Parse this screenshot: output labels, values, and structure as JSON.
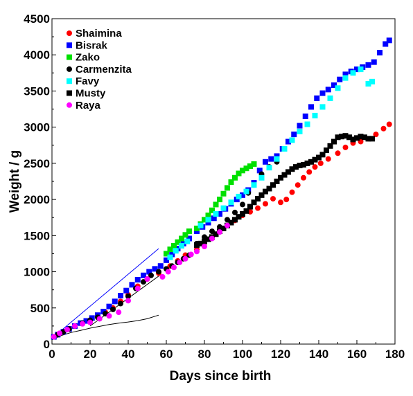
{
  "chart_data": {
    "type": "scatter",
    "title": "",
    "xlabel": "Days since birth",
    "ylabel": "Weight / g",
    "xlim": [
      0,
      180
    ],
    "ylim": [
      0,
      4500
    ],
    "xticks": [
      "0",
      "20",
      "40",
      "60",
      "80",
      "100",
      "120",
      "140",
      "160",
      "180"
    ],
    "yticks": [
      "0",
      "500",
      "1000",
      "1500",
      "2000",
      "2500",
      "3000",
      "3500",
      "4000",
      "4500"
    ],
    "grid": false,
    "legend_position": "top-left",
    "series": [
      {
        "name": "Shaimina",
        "color": "#ff0000",
        "marker": "circle",
        "x": [
          1,
          3,
          6,
          9,
          12,
          16,
          20,
          24,
          28,
          32,
          36,
          40,
          45,
          50,
          56,
          62,
          66,
          70,
          76,
          80,
          84,
          88,
          92,
          96,
          100,
          104,
          108,
          112,
          116,
          120,
          123,
          126,
          129,
          132,
          135,
          138,
          141,
          145,
          150,
          154,
          158,
          162,
          166,
          170,
          174,
          177
        ],
        "y": [
          100,
          130,
          170,
          210,
          250,
          290,
          320,
          380,
          440,
          500,
          590,
          680,
          800,
          900,
          980,
          1080,
          1150,
          1230,
          1310,
          1400,
          1480,
          1560,
          1640,
          1710,
          1780,
          1830,
          1880,
          1940,
          2010,
          1960,
          2000,
          2100,
          2200,
          2300,
          2380,
          2450,
          2500,
          2560,
          2640,
          2720,
          2780,
          2800,
          2840,
          2900,
          2980,
          3040
        ]
      },
      {
        "name": "Bisrak",
        "color": "#0000ff",
        "marker": "square",
        "x": [
          1,
          3,
          6,
          9,
          12,
          15,
          18,
          21,
          24,
          27,
          30,
          33,
          36,
          39,
          42,
          45,
          48,
          51,
          54,
          57,
          60,
          63,
          66,
          69,
          72,
          76,
          79,
          82,
          85,
          88,
          91,
          94,
          97,
          100,
          103,
          106,
          109,
          112,
          115,
          118,
          121,
          124,
          127,
          130,
          133,
          136,
          139,
          142,
          145,
          148,
          151,
          154,
          157,
          160,
          163,
          166,
          169,
          172,
          175,
          177
        ],
        "y": [
          100,
          130,
          170,
          210,
          250,
          290,
          320,
          360,
          400,
          450,
          520,
          590,
          670,
          740,
          820,
          890,
          950,
          1000,
          1040,
          1080,
          1160,
          1240,
          1320,
          1390,
          1460,
          1560,
          1620,
          1680,
          1740,
          1800,
          1870,
          1940,
          2000,
          2060,
          2130,
          2230,
          2400,
          2520,
          2560,
          2600,
          2700,
          2800,
          2900,
          3020,
          3150,
          3280,
          3400,
          3470,
          3520,
          3580,
          3660,
          3730,
          3770,
          3800,
          3830,
          3860,
          3900,
          4030,
          4150,
          4200
        ]
      },
      {
        "name": "Zako",
        "color": "#00e000",
        "marker": "square",
        "x": [
          60,
          62,
          64,
          66,
          68,
          70,
          72,
          76,
          78,
          80,
          82,
          84,
          86,
          88,
          90,
          92,
          94,
          96,
          98,
          100,
          102,
          104,
          106
        ],
        "y": [
          1250,
          1310,
          1360,
          1410,
          1460,
          1510,
          1560,
          1600,
          1660,
          1720,
          1780,
          1850,
          1930,
          2000,
          2080,
          2160,
          2240,
          2300,
          2360,
          2400,
          2430,
          2460,
          2490
        ]
      },
      {
        "name": "Carmenzita",
        "color": "#000000",
        "marker": "circle",
        "x": [
          1,
          3,
          6,
          9,
          12,
          16,
          20,
          24,
          28,
          32,
          36,
          40,
          44,
          48,
          52,
          56,
          60,
          63,
          66,
          69,
          72,
          76,
          80,
          84,
          88,
          92,
          96,
          100,
          103,
          106,
          110,
          114,
          118
        ],
        "y": [
          100,
          130,
          170,
          210,
          250,
          290,
          330,
          370,
          420,
          480,
          560,
          660,
          770,
          860,
          950,
          1000,
          1040,
          1080,
          1130,
          1180,
          1230,
          1390,
          1480,
          1560,
          1620,
          1720,
          1820,
          1930,
          2090,
          2200,
          2350,
          2450,
          2520
        ]
      },
      {
        "name": "Favy",
        "color": "#00ffff",
        "marker": "square",
        "x": [
          62,
          65,
          68,
          71,
          78,
          82,
          86,
          90,
          94,
          98,
          102,
          106,
          110,
          114,
          118,
          122,
          126,
          130,
          134,
          138,
          142,
          146,
          150,
          154,
          158,
          162,
          166,
          168
        ],
        "y": [
          1200,
          1290,
          1360,
          1420,
          1640,
          1720,
          1800,
          1880,
          1960,
          2040,
          2110,
          2200,
          2300,
          2440,
          2560,
          2700,
          2820,
          2940,
          3040,
          3160,
          3280,
          3400,
          3540,
          3680,
          3750,
          3800,
          3600,
          3630
        ]
      },
      {
        "name": "Musty",
        "color": "#000000",
        "marker": "square",
        "x": [
          76,
          78,
          80,
          82,
          84,
          86,
          88,
          90,
          92,
          94,
          96,
          98,
          100,
          102,
          104,
          106,
          108,
          110,
          112,
          114,
          116,
          118,
          120,
          122,
          124,
          126,
          128,
          130,
          132,
          134,
          136,
          138,
          140,
          142,
          144,
          146,
          148,
          150,
          152,
          154,
          156,
          158,
          160,
          162,
          164,
          166,
          168
        ],
        "y": [
          1370,
          1390,
          1420,
          1450,
          1480,
          1520,
          1560,
          1600,
          1640,
          1680,
          1720,
          1760,
          1800,
          1840,
          1900,
          1960,
          2010,
          2060,
          2110,
          2150,
          2200,
          2250,
          2300,
          2340,
          2380,
          2420,
          2450,
          2470,
          2480,
          2500,
          2520,
          2550,
          2580,
          2620,
          2680,
          2740,
          2800,
          2860,
          2870,
          2880,
          2860,
          2830,
          2850,
          2870,
          2860,
          2840,
          2840
        ]
      },
      {
        "name": "Raya",
        "color": "#ff00ff",
        "marker": "circle",
        "x": [
          1,
          4,
          8,
          12,
          16,
          20,
          25,
          30,
          35,
          40,
          45,
          50,
          58,
          61,
          64,
          67,
          70,
          73,
          76,
          80,
          84,
          88,
          92
        ],
        "y": [
          100,
          150,
          200,
          250,
          280,
          300,
          350,
          390,
          440,
          600,
          770,
          900,
          930,
          1000,
          1060,
          1130,
          1180,
          1240,
          1280,
          1350,
          1460,
          1550,
          1640
        ]
      }
    ],
    "lines": [
      {
        "color": "#0000ff",
        "x": [
          0,
          56
        ],
        "y": [
          80,
          1320
        ]
      },
      {
        "color": "#000000",
        "x": [
          20,
          56
        ],
        "y": [
          250,
          940
        ]
      },
      {
        "color": "#000000",
        "x": [
          0,
          5,
          10,
          15,
          20,
          25,
          30,
          35,
          40,
          45,
          50,
          56
        ],
        "y": [
          60,
          120,
          160,
          190,
          220,
          245,
          270,
          290,
          305,
          325,
          350,
          400
        ]
      }
    ]
  }
}
